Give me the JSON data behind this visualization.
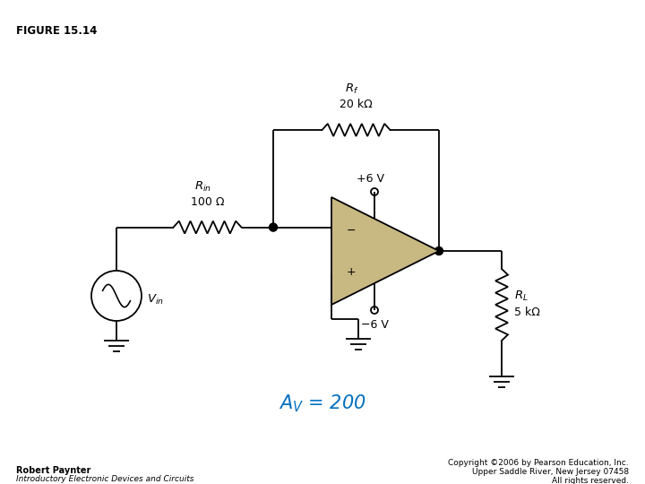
{
  "title": "FIGURE 15.14",
  "bg_color": "#ffffff",
  "op_amp_color": "#c8b882",
  "wire_color": "#000000",
  "dot_color": "#000000",
  "av_text": "$A_V$ = 200",
  "av_color": "#0070c0",
  "rf_label": "$R_f$",
  "rf_value": "20 kΩ",
  "rin_label": "$R_{in}$",
  "rin_value": "100 Ω",
  "rl_label": "$R_L$",
  "rl_value": "5 kΩ",
  "vcc_label": "+6 V",
  "vee_label": "−6 V",
  "vin_label": "$V_{in}$",
  "author_line1": "Robert Paynter",
  "author_line2": "Introductory Electronic Devices and Circuits",
  "copy_line1": "Copyright ©2006 by Pearson Education, Inc.",
  "copy_line2": "Upper Saddle River, New Jersey 07458",
  "copy_line3": "All rights reserved."
}
